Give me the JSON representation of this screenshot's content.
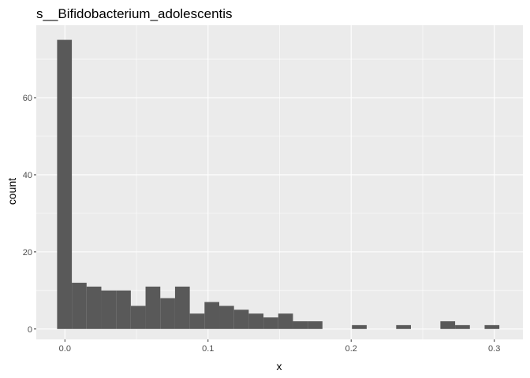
{
  "chart_data": {
    "type": "bar",
    "title": "s__Bifidobacterium_adolescentis",
    "xlabel": "x",
    "ylabel": "count",
    "xlim": [
      -0.02,
      0.32
    ],
    "ylim": [
      -2.7,
      78.8
    ],
    "x_ticks": [
      0.0,
      0.1,
      0.2,
      0.3
    ],
    "x_tick_labels": [
      "0.0",
      "0.1",
      "0.2",
      "0.3"
    ],
    "y_ticks": [
      0,
      20,
      40,
      60
    ],
    "y_tick_labels": [
      "0",
      "20",
      "40",
      "60"
    ],
    "bin_width": 0.0103,
    "bins": [
      {
        "x": -0.0003,
        "count": 75
      },
      {
        "x": 0.01,
        "count": 12
      },
      {
        "x": 0.0203,
        "count": 11
      },
      {
        "x": 0.0306,
        "count": 10
      },
      {
        "x": 0.0409,
        "count": 10
      },
      {
        "x": 0.0512,
        "count": 6
      },
      {
        "x": 0.0615,
        "count": 11
      },
      {
        "x": 0.0718,
        "count": 8
      },
      {
        "x": 0.0821,
        "count": 11
      },
      {
        "x": 0.0924,
        "count": 4
      },
      {
        "x": 0.1027,
        "count": 7
      },
      {
        "x": 0.113,
        "count": 6
      },
      {
        "x": 0.1233,
        "count": 5
      },
      {
        "x": 0.1336,
        "count": 4
      },
      {
        "x": 0.1439,
        "count": 3
      },
      {
        "x": 0.1542,
        "count": 4
      },
      {
        "x": 0.1645,
        "count": 2
      },
      {
        "x": 0.1748,
        "count": 2
      },
      {
        "x": 0.1851,
        "count": 0
      },
      {
        "x": 0.1954,
        "count": 0
      },
      {
        "x": 0.2057,
        "count": 1
      },
      {
        "x": 0.216,
        "count": 0
      },
      {
        "x": 0.2263,
        "count": 0
      },
      {
        "x": 0.2366,
        "count": 1
      },
      {
        "x": 0.2469,
        "count": 0
      },
      {
        "x": 0.2572,
        "count": 0
      },
      {
        "x": 0.2675,
        "count": 2
      },
      {
        "x": 0.2778,
        "count": 1
      },
      {
        "x": 0.2881,
        "count": 0
      },
      {
        "x": 0.2984,
        "count": 1
      }
    ],
    "grid": true,
    "panel_color": "#ebebeb",
    "bar_color": "#595959",
    "grid_color": "#ffffff"
  }
}
